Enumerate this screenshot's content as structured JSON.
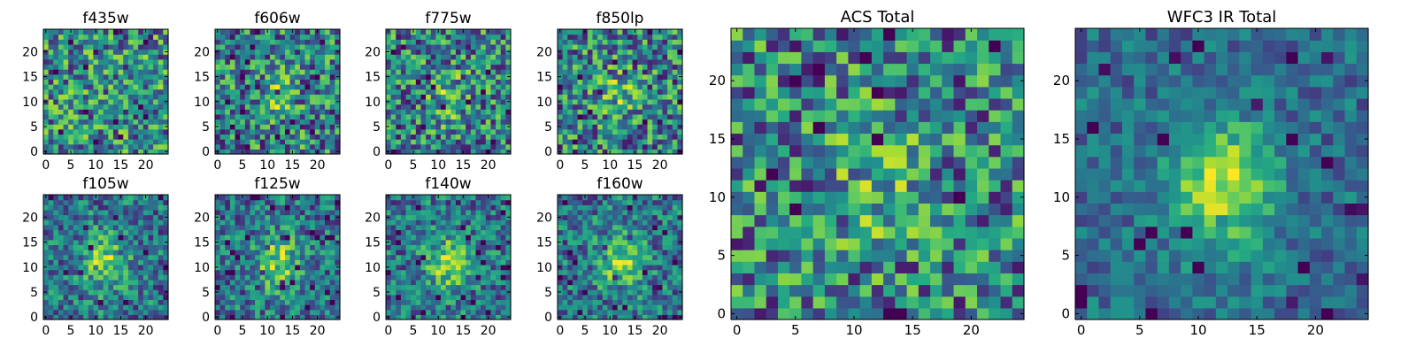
{
  "chart_data": [
    {
      "type": "heatmap",
      "title": "f435w",
      "xticks": [
        "0",
        "5",
        "10",
        "15",
        "20"
      ],
      "yticks": [
        "0",
        "5",
        "10",
        "15",
        "20"
      ],
      "xlim": [
        -0.5,
        24.5
      ],
      "ylim": [
        -0.5,
        24.5
      ],
      "colormap": "viridis",
      "pattern": "noise",
      "seed": 11
    },
    {
      "type": "heatmap",
      "title": "f606w",
      "xticks": [
        "0",
        "5",
        "10",
        "15",
        "20"
      ],
      "yticks": [
        "0",
        "5",
        "10",
        "15",
        "20"
      ],
      "xlim": [
        -0.5,
        24.5
      ],
      "ylim": [
        -0.5,
        24.5
      ],
      "colormap": "viridis",
      "pattern": "faint-source",
      "seed": 23
    },
    {
      "type": "heatmap",
      "title": "f775w",
      "xticks": [
        "0",
        "5",
        "10",
        "15",
        "20"
      ],
      "yticks": [
        "0",
        "5",
        "10",
        "15",
        "20"
      ],
      "xlim": [
        -0.5,
        24.5
      ],
      "ylim": [
        -0.5,
        24.5
      ],
      "colormap": "viridis",
      "pattern": "faint-source",
      "seed": 37
    },
    {
      "type": "heatmap",
      "title": "f850lp",
      "xticks": [
        "0",
        "5",
        "10",
        "15",
        "20"
      ],
      "yticks": [
        "0",
        "5",
        "10",
        "15",
        "20"
      ],
      "xlim": [
        -0.5,
        24.5
      ],
      "ylim": [
        -0.5,
        24.5
      ],
      "colormap": "viridis",
      "pattern": "faint-source",
      "seed": 41
    },
    {
      "type": "heatmap",
      "title": "f105w",
      "xticks": [
        "0",
        "5",
        "10",
        "15",
        "20"
      ],
      "yticks": [
        "0",
        "5",
        "10",
        "15",
        "20"
      ],
      "xlim": [
        -0.5,
        24.5
      ],
      "ylim": [
        -0.5,
        24.5
      ],
      "colormap": "viridis",
      "pattern": "source",
      "seed": 53
    },
    {
      "type": "heatmap",
      "title": "f125w",
      "xticks": [
        "0",
        "5",
        "10",
        "15",
        "20"
      ],
      "yticks": [
        "0",
        "5",
        "10",
        "15",
        "20"
      ],
      "xlim": [
        -0.5,
        24.5
      ],
      "ylim": [
        -0.5,
        24.5
      ],
      "colormap": "viridis",
      "pattern": "source",
      "seed": 67
    },
    {
      "type": "heatmap",
      "title": "f140w",
      "xticks": [
        "0",
        "5",
        "10",
        "15",
        "20"
      ],
      "yticks": [
        "0",
        "5",
        "10",
        "15",
        "20"
      ],
      "xlim": [
        -0.5,
        24.5
      ],
      "ylim": [
        -0.5,
        24.5
      ],
      "colormap": "viridis",
      "pattern": "source",
      "seed": 71
    },
    {
      "type": "heatmap",
      "title": "f160w",
      "xticks": [
        "0",
        "5",
        "10",
        "15",
        "20"
      ],
      "yticks": [
        "0",
        "5",
        "10",
        "15",
        "20"
      ],
      "xlim": [
        -0.5,
        24.5
      ],
      "ylim": [
        -0.5,
        24.5
      ],
      "colormap": "viridis",
      "pattern": "source",
      "seed": 83
    },
    {
      "type": "heatmap",
      "title": "ACS Total",
      "xticks": [
        "0",
        "5",
        "10",
        "15",
        "20"
      ],
      "yticks": [
        "0",
        "5",
        "10",
        "15",
        "20"
      ],
      "xlim": [
        -0.5,
        24.5
      ],
      "ylim": [
        -0.5,
        24.5
      ],
      "colormap": "viridis",
      "pattern": "faint-source",
      "seed": 97
    },
    {
      "type": "heatmap",
      "title": "WFC3 IR Total",
      "xticks": [
        "0",
        "5",
        "10",
        "15",
        "20"
      ],
      "yticks": [
        "0",
        "5",
        "10",
        "15",
        "20"
      ],
      "xlim": [
        -0.5,
        24.5
      ],
      "ylim": [
        -0.5,
        24.5
      ],
      "colormap": "viridis",
      "pattern": "strong-source",
      "seed": 101
    }
  ]
}
